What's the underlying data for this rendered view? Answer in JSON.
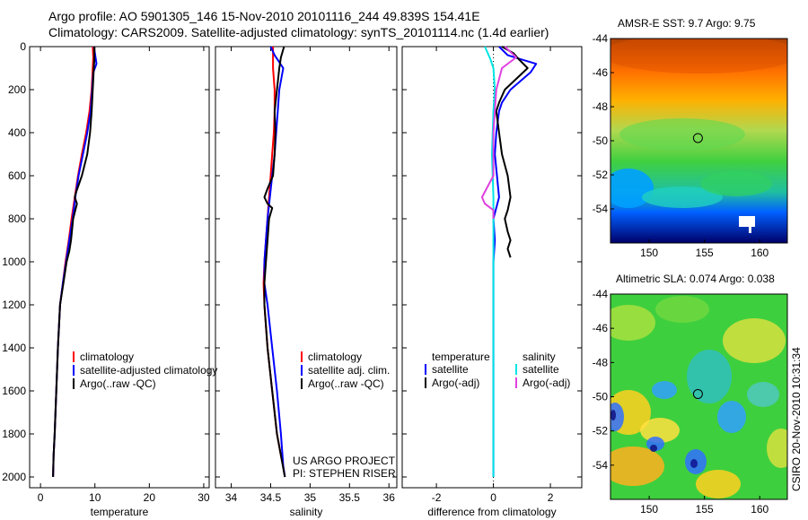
{
  "header": {
    "line1": "Argo profile: AO 5901305_146 15-Nov-2010 20101116_244 49.839S 154.41E",
    "line2": "Climatology: CARS2009. Satellite-adjusted climatology: synTS_20101114.nc (1.4d earlier)"
  },
  "footer": "CSIRO 20-Nov-2010 10:31:34",
  "project_note": [
    "US ARGO PROJECT",
    "PI: STEPHEN RISER"
  ],
  "colors": {
    "climatology": "#ff0000",
    "satellite": "#0000ff",
    "argo": "#000000",
    "satellite_sal": "#00e5e5",
    "argo_sal": "#e040e0",
    "axis": "#000000"
  },
  "maps": [
    {
      "id": "sst",
      "title": "AMSR-E SST: 9.7 Argo: 9.75",
      "xticks": [
        150,
        155,
        160
      ],
      "yticks": [
        -44,
        -46,
        -48,
        -50,
        -52,
        -54
      ],
      "xlim": [
        146.5,
        162.5
      ],
      "ylim": [
        -56,
        -44
      ],
      "marker": {
        "lon": 154.41,
        "lat": -49.84
      }
    },
    {
      "id": "sla",
      "title": "Altimetric SLA: 0.074 Argo: 0.038",
      "xticks": [
        150,
        155,
        160
      ],
      "yticks": [
        -44,
        -46,
        -48,
        -50,
        -52,
        -54
      ],
      "xlim": [
        146.5,
        162.5
      ],
      "ylim": [
        -56,
        -44
      ],
      "marker": {
        "lon": 154.41,
        "lat": -49.84
      }
    }
  ],
  "chart_data": [
    {
      "id": "temperature",
      "type": "line",
      "xlabel": "temperature",
      "ylabel": "",
      "xlim": [
        -2,
        31
      ],
      "ylim": [
        2050,
        0
      ],
      "xticks": [
        0,
        10,
        20,
        30
      ],
      "yticks": [
        0,
        200,
        400,
        600,
        800,
        1000,
        1200,
        1400,
        1600,
        1800,
        2000
      ],
      "legend": [
        {
          "label": "climatology",
          "color": "#ff0000"
        },
        {
          "label": "satellite-adjusted climatology",
          "color": "#0000ff"
        },
        {
          "label": "Argo(..raw -QC)",
          "color": "#000000"
        }
      ],
      "series": [
        {
          "name": "climatology",
          "color": "#ff0000",
          "x": [
            9.6,
            9.7,
            9.6,
            9.4,
            9.0,
            8.4,
            7.6,
            6.9,
            6.3,
            5.7,
            5.2,
            4.6,
            4.1,
            3.6,
            3.2,
            2.9,
            2.6,
            2.4,
            2.3
          ],
          "y": [
            0,
            50,
            100,
            200,
            300,
            400,
            500,
            600,
            700,
            800,
            900,
            1000,
            1100,
            1200,
            1400,
            1600,
            1800,
            1900,
            2000
          ]
        },
        {
          "name": "satellite-adjusted climatology",
          "color": "#0000ff",
          "x": [
            9.8,
            10.0,
            10.3,
            9.7,
            9.5,
            9.2,
            8.6,
            7.8,
            7.0,
            6.4,
            5.9,
            5.3,
            4.7,
            4.1,
            3.6,
            3.2,
            2.9,
            2.6,
            2.4,
            2.3
          ],
          "y": [
            0,
            30,
            80,
            120,
            200,
            300,
            400,
            500,
            600,
            700,
            800,
            900,
            1000,
            1100,
            1200,
            1400,
            1600,
            1800,
            1900,
            2000
          ]
        },
        {
          "name": "Argo(..raw -QC)",
          "color": "#000000",
          "x": [
            9.9,
            9.9,
            9.8,
            9.6,
            9.4,
            9.1,
            8.6,
            7.6,
            6.5,
            6.3,
            6.7,
            6.0,
            5.6,
            5.3,
            4.8,
            4.2,
            3.6,
            3.2,
            2.9,
            2.6,
            2.4,
            2.3
          ],
          "y": [
            0,
            60,
            100,
            200,
            300,
            400,
            500,
            600,
            680,
            700,
            730,
            800,
            900,
            950,
            1000,
            1100,
            1200,
            1400,
            1600,
            1800,
            1900,
            2000
          ]
        }
      ]
    },
    {
      "id": "salinity",
      "type": "line",
      "xlabel": "salinity",
      "ylabel": "",
      "xlim": [
        33.8,
        36.1
      ],
      "ylim": [
        2050,
        0
      ],
      "xticks": [
        34,
        34.5,
        35,
        35.5,
        36
      ],
      "xtick_labels": [
        "34",
        "34.5",
        "35",
        "35.5",
        "36"
      ],
      "yticks": [
        0,
        200,
        400,
        600,
        800,
        1000,
        1200,
        1400,
        1600,
        1800,
        2000
      ],
      "legend": [
        {
          "label": "climatology",
          "color": "#ff0000"
        },
        {
          "label": "satellite adj. clim.",
          "color": "#0000ff"
        },
        {
          "label": "Argo(..raw -QC)",
          "color": "#000000"
        }
      ],
      "series": [
        {
          "name": "climatology",
          "color": "#ff0000",
          "x": [
            34.53,
            34.53,
            34.55,
            34.55,
            34.54,
            34.52,
            34.5,
            34.48,
            34.46,
            34.44,
            34.42,
            34.41,
            34.42,
            34.46,
            34.52,
            34.58,
            34.63,
            34.66,
            34.68
          ],
          "y": [
            0,
            100,
            200,
            300,
            400,
            500,
            600,
            700,
            800,
            900,
            1000,
            1100,
            1200,
            1400,
            1600,
            1800,
            1900,
            1950,
            2000
          ]
        },
        {
          "name": "satellite adj. clim.",
          "color": "#0000ff",
          "x": [
            34.5,
            34.55,
            34.66,
            34.61,
            34.59,
            34.57,
            34.55,
            34.52,
            34.49,
            34.46,
            34.44,
            34.42,
            34.42,
            34.46,
            34.52,
            34.58,
            34.63,
            34.66,
            34.68
          ],
          "y": [
            0,
            40,
            100,
            200,
            300,
            400,
            500,
            600,
            700,
            800,
            900,
            1000,
            1100,
            1200,
            1400,
            1600,
            1800,
            1950,
            2000
          ]
        },
        {
          "name": "Argo(..raw -QC)",
          "color": "#000000",
          "x": [
            34.67,
            34.63,
            34.61,
            34.58,
            34.55,
            34.56,
            34.55,
            34.53,
            34.46,
            34.42,
            34.46,
            34.52,
            34.48,
            34.46,
            34.44,
            34.42,
            34.42,
            34.46,
            34.52,
            34.58,
            34.63,
            34.68
          ],
          "y": [
            0,
            50,
            100,
            200,
            300,
            400,
            500,
            600,
            660,
            700,
            730,
            750,
            800,
            900,
            1000,
            1100,
            1200,
            1400,
            1600,
            1800,
            1900,
            2000
          ]
        }
      ]
    },
    {
      "id": "difference",
      "type": "line",
      "xlabel": "difference from climatology",
      "ylabel": "",
      "xlim": [
        -3.2,
        3.1
      ],
      "ylim": [
        2050,
        0
      ],
      "xticks": [
        -2,
        0,
        2
      ],
      "yticks": [
        0,
        200,
        400,
        600,
        800,
        1000,
        1200,
        1400,
        1600,
        1800,
        2000
      ],
      "legend_headers": [
        "temperature",
        "salinity"
      ],
      "legend": [
        {
          "label": "satellite",
          "color": "#0000ff",
          "group": "temperature"
        },
        {
          "label": "Argo(-adj)",
          "color": "#000000",
          "group": "temperature"
        },
        {
          "label": "satellite",
          "color": "#00e5e5",
          "group": "salinity"
        },
        {
          "label": "Argo(-adj)",
          "color": "#e040e0",
          "group": "salinity"
        }
      ],
      "series": [
        {
          "name": "temperature satellite",
          "color": "#0000ff",
          "x": [
            0.2,
            0.5,
            1.0,
            1.5,
            1.3,
            0.6,
            0.3,
            0.2,
            0.1,
            0.05,
            0.2,
            0.0,
            0.05,
            0.0,
            0.0,
            0.0,
            0.0,
            0.0
          ],
          "y": [
            0,
            40,
            60,
            80,
            120,
            200,
            260,
            300,
            400,
            500,
            700,
            800,
            900,
            1000,
            1200,
            1500,
            1800,
            2000
          ]
        },
        {
          "name": "temperature Argo(-adj)",
          "color": "#000000",
          "x": [
            0.3,
            0.7,
            0.9,
            1.2,
            0.8,
            0.4,
            0.2,
            0.1,
            0.2,
            0.3,
            0.4,
            0.5,
            0.6,
            0.5,
            0.4,
            0.5,
            0.6,
            0.5,
            0.6
          ],
          "y": [
            0,
            30,
            60,
            100,
            150,
            200,
            260,
            300,
            400,
            500,
            550,
            600,
            700,
            760,
            800,
            860,
            900,
            940,
            980
          ]
        },
        {
          "name": "salinity satellite",
          "color": "#00e5e5",
          "x": [
            -0.3,
            -0.1,
            0.0,
            0.05,
            0.0,
            -0.05,
            0.0,
            0.0,
            0.0,
            0.0,
            0.0
          ],
          "y": [
            0,
            60,
            100,
            200,
            300,
            500,
            700,
            900,
            1200,
            1600,
            2000
          ]
        },
        {
          "name": "salinity Argo(-adj)",
          "color": "#e040e0",
          "x": [
            0.4,
            0.8,
            0.3,
            0.1,
            0.0,
            0.0,
            -0.2,
            -0.4,
            -0.3,
            0.0,
            0.0
          ],
          "y": [
            0,
            50,
            100,
            200,
            400,
            600,
            650,
            700,
            730,
            760,
            800
          ]
        }
      ]
    }
  ]
}
